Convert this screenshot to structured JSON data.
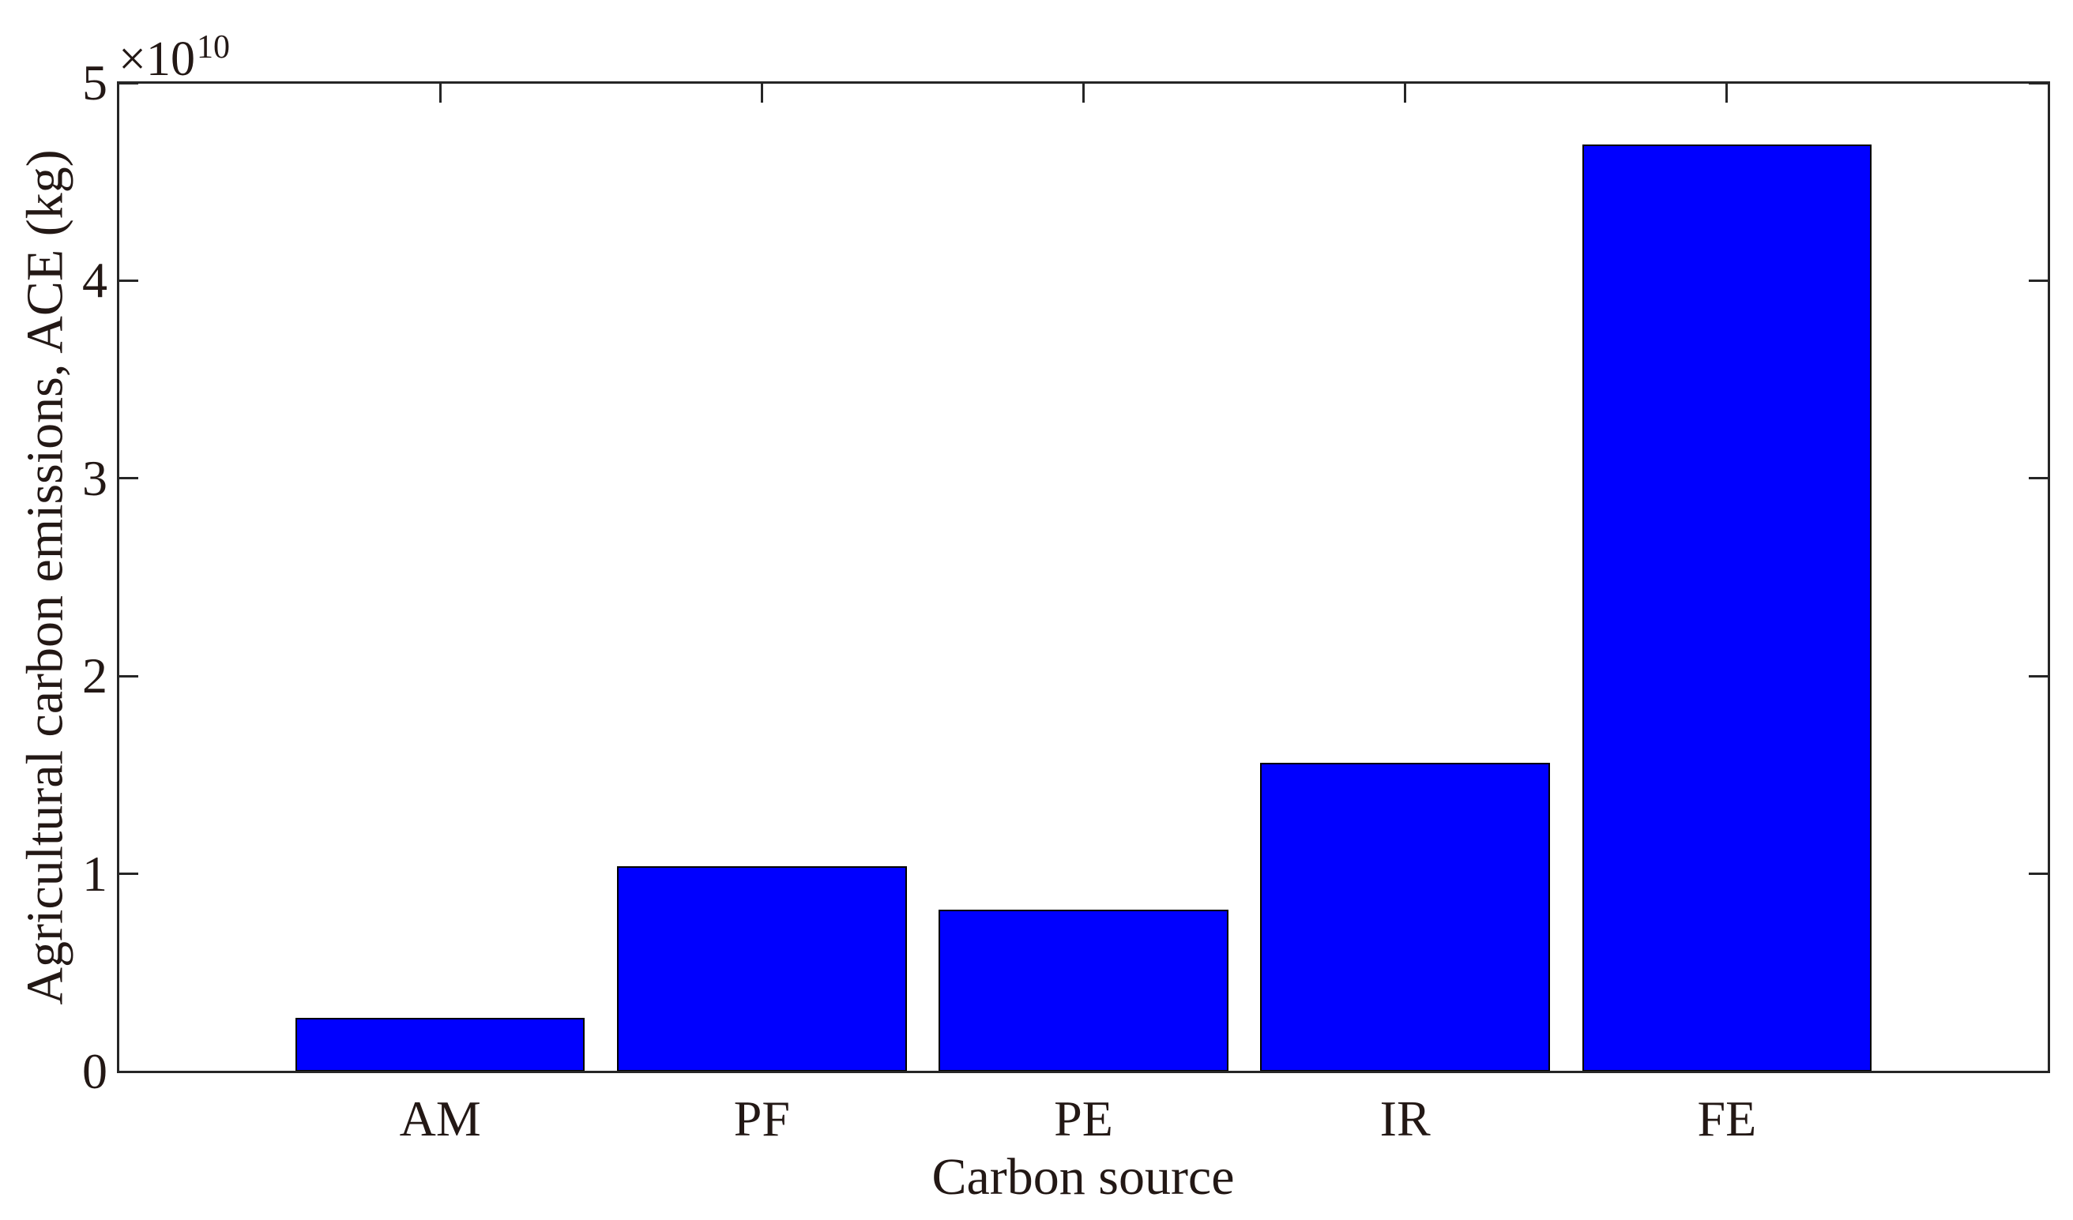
{
  "chart_data": {
    "type": "bar",
    "title": "",
    "categories": [
      "AM",
      "PF",
      "PE",
      "IR",
      "FE"
    ],
    "values": [
      2700000000.0,
      10400000000.0,
      8200000000.0,
      15600000000.0,
      46900000000.0
    ],
    "values_in_1e10": [
      0.27,
      1.04,
      0.82,
      1.56,
      4.69
    ],
    "xlabel": "Carbon source",
    "ylabel": "Agricultural carbon emissions, ACE (kg)",
    "x_axis": {
      "lim": [
        0,
        6
      ],
      "tick_positions": [
        1,
        2,
        3,
        4,
        5
      ],
      "tick_labels": [
        "AM",
        "PF",
        "PE",
        "IR",
        "FE"
      ]
    },
    "y_axis": {
      "min": 0,
      "max": 50000000000.0,
      "tick_values_in_1e10": [
        0,
        1,
        2,
        3,
        4,
        5
      ],
      "tick_labels": [
        "0",
        "1",
        "2",
        "3",
        "4",
        "5"
      ],
      "exponent_base": "×10",
      "exponent_power": "10"
    },
    "bar_width_fraction": 0.9,
    "grid": false,
    "legend": null,
    "colors": {
      "bar_fill": "#0000ff",
      "bar_edge": "#000000",
      "axis": "#262626",
      "text": "#231815",
      "background": "#ffffff"
    }
  }
}
